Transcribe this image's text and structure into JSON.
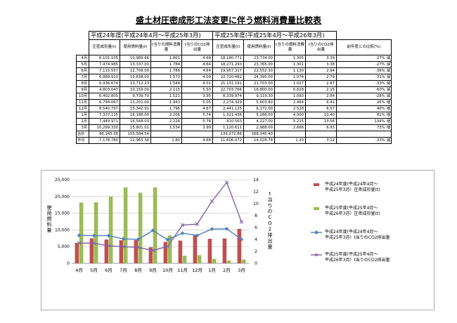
{
  "title": "盛土材圧密成形工法変更に伴う燃料消費量比較表",
  "table": {
    "period_a": "平成24年度(平成24年4月～平成25年3月)",
    "period_b": "平成25年度(平成25年4月～平成26年3月)",
    "headers": [
      "圧密成形量(t)",
      "使用燃料量(ℓ)",
      "t当りの燃料消費量",
      "t当りのCO2排出量",
      "圧密成形量(t)",
      "使用燃料量(ℓ)",
      "t当りの燃料消費量",
      "t当りのCO2排出量",
      "前年度との比較(%)"
    ],
    "rows": [
      {
        "month": "4月",
        "a_vol": "6,101.105",
        "a_fuel": "10,989.66",
        "a_per": "1.801",
        "a_co2": "4.68",
        "b_vol": "18,180.771",
        "b_fuel": "23,734.00",
        "b_per": "1.305",
        "b_co2": "3.39",
        "pct": "-27%",
        "dir": "減"
      },
      {
        "month": "5月",
        "a_vol": "7,474.985",
        "a_fuel": "13,337.00",
        "a_per": "1.784",
        "a_co2": "4.64",
        "b_vol": "18,271.293",
        "b_fuel": "23,765.00",
        "b_per": "1.301",
        "b_co2": "3.38",
        "pct": "-27%",
        "dir": "減"
      },
      {
        "month": "6月",
        "a_vol": "7,115.557",
        "a_fuel": "12,708.00",
        "a_per": "1.786",
        "a_co2": "4.64",
        "b_vol": "19,957.317",
        "b_fuel": "22,552.30",
        "b_per": "1.130",
        "b_co2": "2.94",
        "pct": "-36%",
        "dir": "減"
      },
      {
        "month": "7月",
        "a_vol": "6,889.910",
        "a_fuel": "10,838.00",
        "a_per": "1.573",
        "a_co2": "4.09",
        "b_vol": "22,720.482",
        "b_fuel": "24,395.00",
        "b_per": "1.074",
        "b_co2": "2.79",
        "pct": "-31%",
        "dir": "減"
      },
      {
        "month": "8月",
        "a_vol": "6,936.674",
        "a_fuel": "10,712.23",
        "a_per": "1.544",
        "a_co2": "4.01",
        "b_vol": "21,131.191",
        "b_fuel": "21,703.00",
        "b_per": "1.027",
        "b_co2": "2.67",
        "pct": "-33%",
        "dir": "減"
      },
      {
        "month": "9月",
        "a_vol": "4,803.047",
        "a_fuel": "10,159.00",
        "a_per": "2.115",
        "a_co2": "5.50",
        "b_vol": "22,703.766",
        "b_fuel": "18,800.00",
        "b_per": "0.828",
        "b_co2": "2.15",
        "pct": "-60%",
        "dir": "減"
      },
      {
        "month": "10月",
        "a_vol": "6,402.805",
        "a_fuel": "9,739.70",
        "a_per": "1.521",
        "a_co2": "3.95",
        "b_vol": "8,339.974",
        "b_fuel": "9,119.30",
        "b_per": "1.093",
        "b_co2": "2.84",
        "pct": "-28%",
        "dir": "減"
      },
      {
        "month": "11月",
        "a_vol": "6,794.067",
        "a_fuel": "13,201.00",
        "a_per": "1.943",
        "a_co2": "5.05",
        "b_vol": "2,274.329",
        "b_fuel": "5,603.80",
        "b_per": "2.464",
        "b_co2": "6.41",
        "pct": "26%",
        "dir": "増"
      },
      {
        "month": "12月",
        "a_vol": "8,540.797",
        "a_fuel": "15,342.91",
        "a_per": "1.796",
        "a_co2": "4.67",
        "b_vol": "2,441.125",
        "b_fuel": "6,172.00",
        "b_per": "2.528",
        "b_co2": "6.57",
        "pct": "40%",
        "dir": "増"
      },
      {
        "month": "1月",
        "a_vol": "7,337.115",
        "a_fuel": "16,188.00",
        "a_per": "2.206",
        "a_co2": "5.74",
        "b_vol": "1,321.436",
        "b_fuel": "5,286.00",
        "b_per": "4.000",
        "b_co2": "10.40",
        "pct": "81%",
        "dir": "増"
      },
      {
        "month": "2月",
        "a_vol": "7,449.971",
        "a_fuel": "16,568.03",
        "a_per": "2.224",
        "a_co2": "5.78",
        "b_vol": "810.563",
        "b_fuel": "4,227.00",
        "b_per": "5.215",
        "b_co2": "13.56",
        "pct": "134%",
        "dir": "増"
      },
      {
        "month": "3月",
        "a_vol": "10,299.330",
        "a_fuel": "15,801.01",
        "a_per": "1.534",
        "a_co2": "3.99",
        "b_vol": "1,120.611",
        "b_fuel": "2,988.00",
        "b_per": "2.666",
        "b_co2": "6.93",
        "pct": "73%",
        "dir": "増"
      }
    ],
    "total": {
      "label": "合計",
      "a_vol": "86,145.36",
      "a_fuel": "155,584.54",
      "a_per": "",
      "a_co2": "",
      "b_vol": "139,272.86",
      "b_fuel": "168,345.40",
      "b_per": "",
      "b_co2": "",
      "pct": "",
      "dir": ""
    },
    "avg": {
      "label": "平均",
      "a_vol": "7,178.780",
      "a_fuel": "12,965.38",
      "a_per": "1.80",
      "a_co2": "4.68",
      "b_vol": "11,606.072",
      "b_fuel": "14,028.78",
      "b_per": "1.20",
      "b_co2": "3.12",
      "pct": "-33%",
      "dir": "減"
    }
  },
  "chart_data": {
    "type": "bar",
    "categories": [
      "4月",
      "5月",
      "6月",
      "7月",
      "8月",
      "9月",
      "10月",
      "11月",
      "12月",
      "1月",
      "2月",
      "3月"
    ],
    "ylabel": "使用燃料量",
    "y2label": "tあたりのCO2排出量",
    "ylim": [
      0,
      25000
    ],
    "y2lim": [
      0,
      14
    ],
    "yticks": [
      "0",
      "5,000",
      "10,000",
      "15,000",
      "20,000",
      "25,000"
    ],
    "y2ticks": [
      "0",
      "2",
      "4",
      "6",
      "8",
      "10",
      "12",
      "14"
    ],
    "legend_position": "right",
    "series": [
      {
        "name": "平成24年度(平成24年4月～平成25年3月）圧密成形量(t)",
        "kind": "bar",
        "axis": "left",
        "color": "#c0504d",
        "values": [
          6101,
          7475,
          7116,
          6890,
          6937,
          4803,
          6403,
          6794,
          8541,
          7337,
          7450,
          10299
        ]
      },
      {
        "name": "平成25年度(平成25年4月～平成26年3月）圧密成形量(t)",
        "kind": "bar",
        "axis": "left",
        "color": "#9bbb59",
        "values": [
          18181,
          18271,
          19957,
          22720,
          21131,
          22704,
          8340,
          2274,
          2441,
          1321,
          811,
          1121
        ]
      },
      {
        "name": "平成24年度(平成24年4月～平成25年3月）t当りのCO2排出量",
        "kind": "line",
        "axis": "right",
        "color": "#4f81bd",
        "marker": "diamond",
        "values": [
          4.68,
          4.64,
          4.64,
          4.09,
          4.01,
          5.5,
          3.95,
          5.05,
          4.67,
          5.74,
          5.78,
          3.99
        ]
      },
      {
        "name": "平成25年度(平成25年4月～平成26年3月）t当りのCO2排出量",
        "kind": "line",
        "axis": "right",
        "color": "#8064a2",
        "marker": "x",
        "values": [
          3.39,
          3.38,
          2.94,
          2.79,
          2.67,
          2.15,
          2.84,
          6.41,
          6.57,
          10.4,
          13.56,
          6.93
        ]
      }
    ]
  }
}
